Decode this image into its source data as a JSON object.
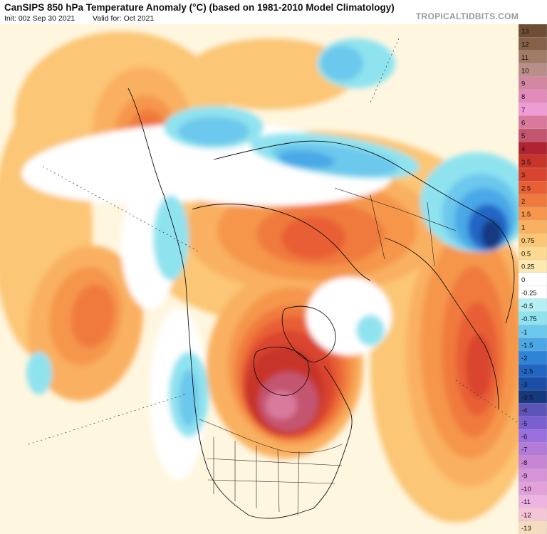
{
  "header": {
    "title": "CanSIPS 850 hPa Temperature Anomaly (°C) (based on 1981-2010 Model Climatology)",
    "init": "Init: 00z Sep 30 2021",
    "valid": "Valid for: Oct 2021",
    "brand": "TROPICALTIDBITS.COM"
  },
  "colorbar": {
    "levels": [
      {
        "label": "13",
        "color": "#6e4d33"
      },
      {
        "label": "12",
        "color": "#866048"
      },
      {
        "label": "11",
        "color": "#a17b66"
      },
      {
        "label": "10",
        "color": "#b88f88"
      },
      {
        "label": "9",
        "color": "#d3869f"
      },
      {
        "label": "8",
        "color": "#e28bbd"
      },
      {
        "label": "7",
        "color": "#ef9bd4"
      },
      {
        "label": "6",
        "color": "#d97a9c"
      },
      {
        "label": "5",
        "color": "#c4556f"
      },
      {
        "label": "4",
        "color": "#b02430"
      },
      {
        "label": "3.5",
        "color": "#c73429"
      },
      {
        "label": "3",
        "color": "#d9442f"
      },
      {
        "label": "2.5",
        "color": "#e85f36"
      },
      {
        "label": "2",
        "color": "#f07a3e"
      },
      {
        "label": "1.5",
        "color": "#f5964c"
      },
      {
        "label": "1",
        "color": "#f9b060"
      },
      {
        "label": "0.75",
        "color": "#fbc676"
      },
      {
        "label": "0.5",
        "color": "#fcd98e"
      },
      {
        "label": "0.25",
        "color": "#fde9b0"
      },
      {
        "label": "0",
        "color": "#ffffff"
      },
      {
        "label": "-0.25",
        "color": "#ffffff"
      },
      {
        "label": "-0.5",
        "color": "#b4eff5"
      },
      {
        "label": "-0.75",
        "color": "#8fe3ef"
      },
      {
        "label": "-1",
        "color": "#6cc8ec"
      },
      {
        "label": "-1.5",
        "color": "#4aa8e6"
      },
      {
        "label": "-2",
        "color": "#2f84d8"
      },
      {
        "label": "-2.5",
        "color": "#2265c4"
      },
      {
        "label": "-3",
        "color": "#1b4ea7"
      },
      {
        "label": "-3.5",
        "color": "#16387f"
      },
      {
        "label": "-4",
        "color": "#5d54b8"
      },
      {
        "label": "-5",
        "color": "#7a5fd0"
      },
      {
        "label": "-6",
        "color": "#9a6fe0"
      },
      {
        "label": "-7",
        "color": "#b27ad9"
      },
      {
        "label": "-8",
        "color": "#c786d3"
      },
      {
        "label": "-9",
        "color": "#d693d8"
      },
      {
        "label": "-10",
        "color": "#e3a1dc"
      },
      {
        "label": "-11",
        "color": "#eeb3df"
      },
      {
        "label": "-12",
        "color": "#f3c5d5"
      },
      {
        "label": "-13",
        "color": "#f4dcc0"
      }
    ]
  },
  "map_layers": [
    {
      "color": "#fbc676",
      "blobs": [
        [
          60,
          290,
          70,
          180,
          0
        ],
        [
          640,
          480,
          120,
          220,
          0
        ],
        [
          440,
          290,
          260,
          140,
          0
        ],
        [
          170,
          130,
          150,
          120,
          0
        ],
        [
          380,
          70,
          120,
          50,
          0
        ]
      ]
    },
    {
      "color": "#f9b060",
      "blobs": [
        [
          120,
          420,
          80,
          110,
          10
        ],
        [
          660,
          460,
          90,
          190,
          0
        ],
        [
          200,
          150,
          70,
          90,
          0
        ],
        [
          400,
          480,
          110,
          130,
          0
        ],
        [
          440,
          290,
          180,
          90,
          0
        ]
      ]
    },
    {
      "color": "#f5964c",
      "blobs": [
        [
          120,
          410,
          50,
          70,
          10
        ],
        [
          660,
          450,
          70,
          160,
          0
        ],
        [
          205,
          160,
          45,
          60,
          0
        ],
        [
          410,
          480,
          90,
          110,
          0
        ],
        [
          445,
          290,
          140,
          70,
          0
        ]
      ]
    },
    {
      "color": "#f07a3e",
      "blobs": [
        [
          130,
          410,
          30,
          45,
          10
        ],
        [
          665,
          460,
          45,
          120,
          0
        ],
        [
          208,
          160,
          30,
          40,
          0
        ],
        [
          410,
          490,
          80,
          95,
          0
        ],
        [
          450,
          295,
          90,
          45,
          0
        ]
      ]
    },
    {
      "color": "#e85f36",
      "blobs": [
        [
          670,
          470,
          30,
          80,
          0
        ],
        [
          210,
          160,
          18,
          24,
          0
        ],
        [
          410,
          495,
          70,
          85,
          0
        ],
        [
          440,
          300,
          45,
          30,
          0
        ]
      ]
    },
    {
      "color": "#d9442f",
      "blobs": [
        [
          672,
          480,
          18,
          45,
          0
        ],
        [
          405,
          505,
          65,
          75,
          0
        ]
      ]
    },
    {
      "color": "#c73429",
      "blobs": [
        [
          400,
          515,
          55,
          62,
          0
        ]
      ]
    },
    {
      "color": "#c4556f",
      "blobs": [
        [
          405,
          530,
          42,
          42,
          0
        ]
      ]
    },
    {
      "color": "#d97a9c",
      "blobs": [
        [
          395,
          535,
          22,
          20,
          0
        ]
      ]
    },
    {
      "color": "#ffffff",
      "blobs": [
        [
          250,
          195,
          220,
          55,
          -4
        ],
        [
          380,
          215,
          170,
          40,
          0
        ],
        [
          490,
          410,
          60,
          55,
          0
        ],
        [
          250,
          520,
          40,
          120,
          0
        ],
        [
          210,
          310,
          40,
          90,
          0
        ]
      ]
    },
    {
      "color": "#8fe3ef",
      "blobs": [
        [
          500,
          55,
          55,
          35,
          0
        ],
        [
          300,
          145,
          70,
          30,
          0
        ],
        [
          470,
          185,
          120,
          28,
          8
        ],
        [
          670,
          250,
          80,
          70,
          0
        ],
        [
          520,
          430,
          20,
          22,
          0
        ],
        [
          265,
          520,
          28,
          60,
          0
        ],
        [
          55,
          490,
          18,
          30,
          0
        ],
        [
          240,
          300,
          25,
          60,
          0
        ]
      ]
    },
    {
      "color": "#6cc8ec",
      "blobs": [
        [
          480,
          55,
          30,
          25,
          0
        ],
        [
          300,
          150,
          50,
          20,
          0
        ],
        [
          470,
          190,
          90,
          20,
          8
        ],
        [
          675,
          265,
          55,
          55,
          0
        ],
        [
          265,
          525,
          14,
          40,
          0
        ]
      ]
    },
    {
      "color": "#4aa8e6",
      "blobs": [
        [
          680,
          275,
          42,
          45,
          0
        ],
        [
          430,
          190,
          40,
          12,
          5
        ]
      ]
    },
    {
      "color": "#2265c4",
      "blobs": [
        [
          685,
          285,
          28,
          32,
          0
        ]
      ]
    },
    {
      "color": "#16387f",
      "blobs": [
        [
          690,
          295,
          14,
          20,
          0
        ]
      ]
    }
  ]
}
